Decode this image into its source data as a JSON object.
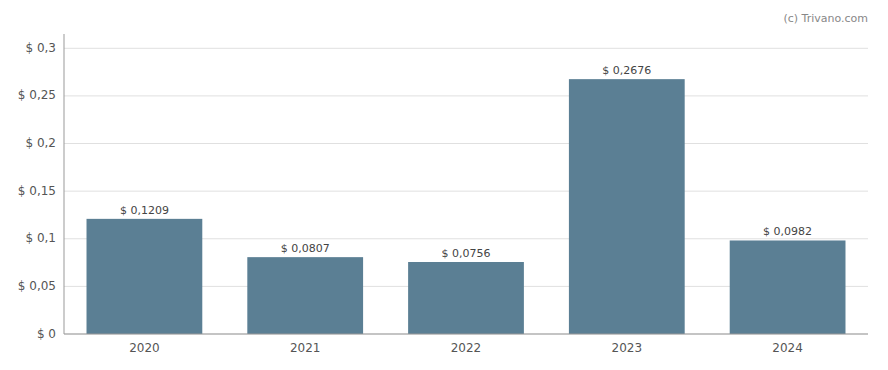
{
  "chart_data": {
    "type": "bar",
    "categories": [
      "2020",
      "2021",
      "2022",
      "2023",
      "2024"
    ],
    "values": [
      0.1209,
      0.0807,
      0.0756,
      0.2676,
      0.0982
    ],
    "value_labels": [
      "$ 0,1209",
      "$ 0,0807",
      "$ 0,0756",
      "$ 0,2676",
      "$ 0,0982"
    ],
    "data_labels": true,
    "color": "#5b7f94",
    "ylim": [
      0,
      0.315
    ],
    "yticks": [
      {
        "value": 0,
        "label": "$ 0"
      },
      {
        "value": 0.05,
        "label": "$ 0,05"
      },
      {
        "value": 0.1,
        "label": "$ 0,1"
      },
      {
        "value": 0.15,
        "label": "$ 0,15"
      },
      {
        "value": 0.2,
        "label": "$ 0,2"
      },
      {
        "value": 0.25,
        "label": "$ 0,25"
      },
      {
        "value": 0.3,
        "label": "$ 0,3"
      }
    ],
    "grid": true,
    "annotations": [
      "(c) Trivano.com"
    ]
  }
}
